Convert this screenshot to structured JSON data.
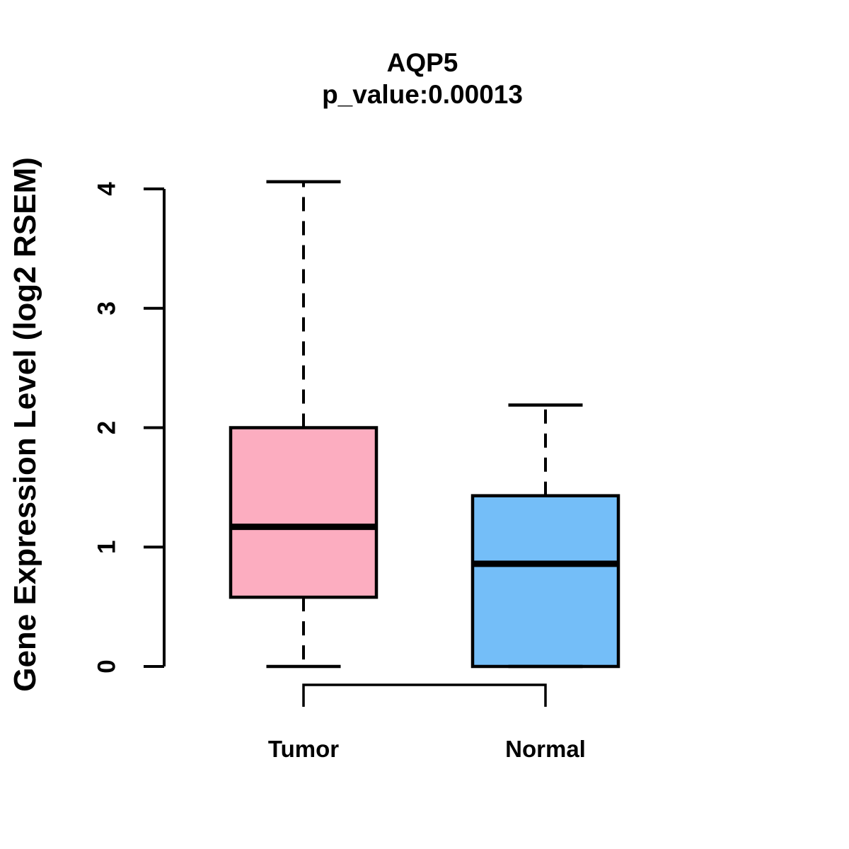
{
  "chart_data": {
    "type": "boxplot",
    "title": "AQP5",
    "subtitle": "p_value:0.00013",
    "ylabel": "Gene Expression Level (log2 RSEM)",
    "xlabel": "",
    "yticks": [
      0,
      1,
      2,
      3,
      4
    ],
    "ylim": [
      0,
      4.1
    ],
    "grid": false,
    "legend": "none",
    "line_color": "#000000",
    "background_color": "#FFFFFF",
    "whisker_style": "dashed",
    "categories": [
      "Tumor",
      "Normal"
    ],
    "groups": [
      {
        "label": "Tumor",
        "color": "#FCADC0",
        "stats": {
          "min": 0,
          "q1": 0.58,
          "median": 1.17,
          "q3": 2.0,
          "max": 4.06
        }
      },
      {
        "label": "Normal",
        "color": "#74BEF8",
        "stats": {
          "min": 0,
          "q1": 0,
          "median": 0.86,
          "q3": 1.43,
          "max": 2.19
        }
      }
    ],
    "comparison_bracket": {
      "from": "Tumor",
      "to": "Normal"
    }
  }
}
